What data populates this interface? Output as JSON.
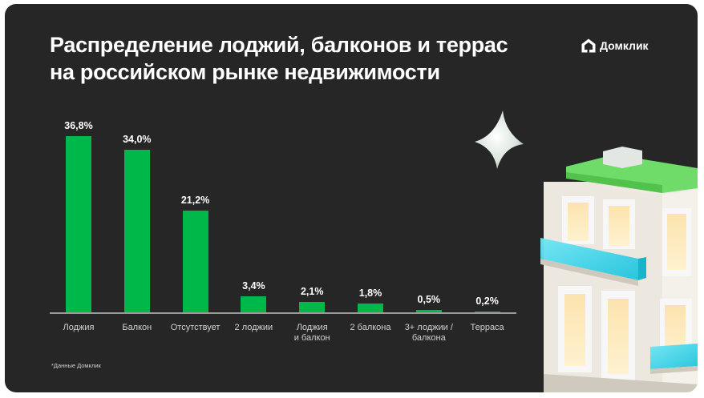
{
  "header": {
    "title_line1": "Распределение лоджий, балконов и террас",
    "title_line2": "на российском рынке недвижимости",
    "logo_text": "Домклик"
  },
  "footnote": "*Данные Домклик",
  "colors": {
    "background": "#262626",
    "bar": "#00b84a",
    "text": "#ffffff",
    "baseline": "#9a9a9a"
  },
  "chart_data": {
    "type": "bar",
    "title": "Распределение лоджий, балконов и террас на российском рынке недвижимости",
    "categories": [
      "Лоджия",
      "Балкон",
      "Отсутствует",
      "2 лоджии",
      "Лоджия и балкон",
      "2 балкона",
      "3+ лоджии / балкона",
      "Терраса"
    ],
    "category_lines": [
      [
        "Лоджия"
      ],
      [
        "Балкон"
      ],
      [
        "Отсутствует"
      ],
      [
        "2 лоджии"
      ],
      [
        "Лоджия",
        "и балкон"
      ],
      [
        "2 балкона"
      ],
      [
        "3+ лоджии /",
        "балкона"
      ],
      [
        "Терраса"
      ]
    ],
    "values": [
      36.8,
      34.0,
      21.2,
      3.4,
      2.1,
      1.8,
      0.5,
      0.2
    ],
    "labels": [
      "36,8%",
      "34,0%",
      "21,2%",
      "3,4%",
      "2,1%",
      "1,8%",
      "0,5%",
      "0,2%"
    ],
    "unit": "%",
    "xlabel": "",
    "ylabel": "",
    "ylim": [
      0,
      37
    ],
    "grid": false,
    "legend": null,
    "source": "*Данные Домклик"
  }
}
